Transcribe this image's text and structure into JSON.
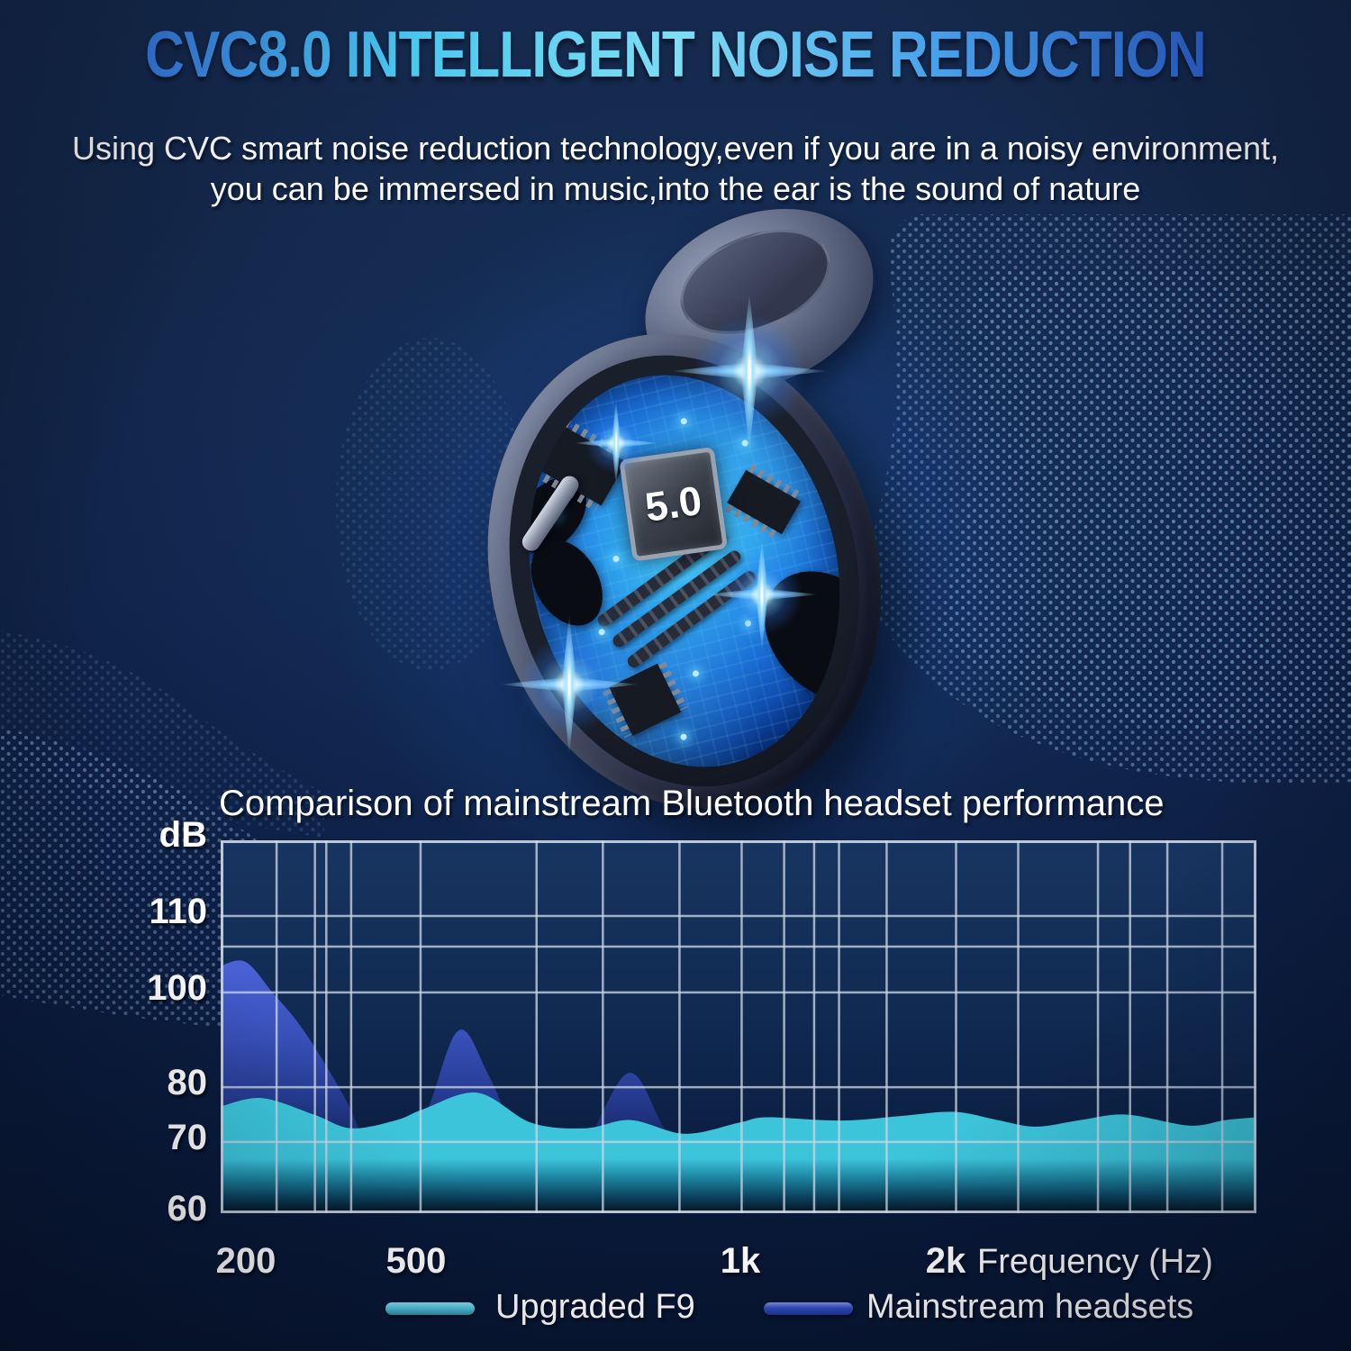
{
  "header": {
    "title": "CVC8.0 INTELLIGENT NOISE REDUCTION",
    "subtitle_line1": "Using CVC smart noise reduction technology,even if you are in a noisy environment,",
    "subtitle_line2": "you can be immersed in music,into the ear is the sound of nature"
  },
  "product": {
    "chip_label": "5.0"
  },
  "colors": {
    "background": "#0f2449",
    "title_gradient_left": "#3579e2",
    "title_gradient_mid": "#7edef4",
    "title_gradient_right": "#2b64d2",
    "grid_line": "#c9d4e2",
    "series_upgraded_f9": "#4fc7e0",
    "series_mainstream": "#2f4cc4"
  },
  "chart_data": {
    "type": "area",
    "title": "Comparison of mainstream Bluetooth headset performance",
    "x_axis": {
      "label": "Frequency (Hz)",
      "tick_labels": [
        "200",
        "500",
        "1k",
        "2k"
      ],
      "scale": "log-like"
    },
    "y_axis": {
      "unit_label": "dB",
      "tick_values": [
        110,
        100,
        80,
        70,
        60
      ],
      "ylim": [
        60,
        115
      ]
    },
    "grid": true,
    "legend_position": "bottom",
    "series": [
      {
        "name": "Upgraded F9",
        "color": "#4fc7e0",
        "points": [
          [
            0,
            76.5
          ],
          [
            0.04,
            78
          ],
          [
            0.09,
            75
          ],
          [
            0.126,
            72.5
          ],
          [
            0.17,
            74
          ],
          [
            0.196,
            76
          ],
          [
            0.248,
            79
          ],
          [
            0.3,
            73.5
          ],
          [
            0.352,
            72.5
          ],
          [
            0.396,
            74
          ],
          [
            0.448,
            71.5
          ],
          [
            0.5,
            73.5
          ],
          [
            0.526,
            74.5
          ],
          [
            0.58,
            74
          ],
          [
            0.613,
            74
          ],
          [
            0.66,
            74.8
          ],
          [
            0.709,
            75.5
          ],
          [
            0.75,
            74
          ],
          [
            0.787,
            72.8
          ],
          [
            0.83,
            74
          ],
          [
            0.874,
            75
          ],
          [
            0.935,
            73
          ],
          [
            0.97,
            74
          ],
          [
            1,
            74.5
          ]
        ]
      },
      {
        "name": "Mainstream headsets",
        "color": "#2f4cc4",
        "points": [
          [
            0,
            103.5
          ],
          [
            0.024,
            104
          ],
          [
            0.05,
            100
          ],
          [
            0.08,
            92
          ],
          [
            0.12,
            78
          ],
          [
            0.165,
            63.5
          ],
          [
            0.2,
            76
          ],
          [
            0.23,
            92
          ],
          [
            0.26,
            82
          ],
          [
            0.31,
            63.5
          ],
          [
            0.35,
            69
          ],
          [
            0.394,
            83
          ],
          [
            0.43,
            72
          ],
          [
            0.474,
            63
          ],
          [
            0.55,
            62.5
          ],
          [
            0.61,
            63
          ],
          [
            0.66,
            68
          ],
          [
            0.735,
            73
          ],
          [
            0.78,
            70
          ],
          [
            0.856,
            62.5
          ],
          [
            0.9,
            64.5
          ],
          [
            0.926,
            67
          ],
          [
            0.97,
            64
          ],
          [
            1,
            63.5
          ]
        ]
      }
    ]
  }
}
